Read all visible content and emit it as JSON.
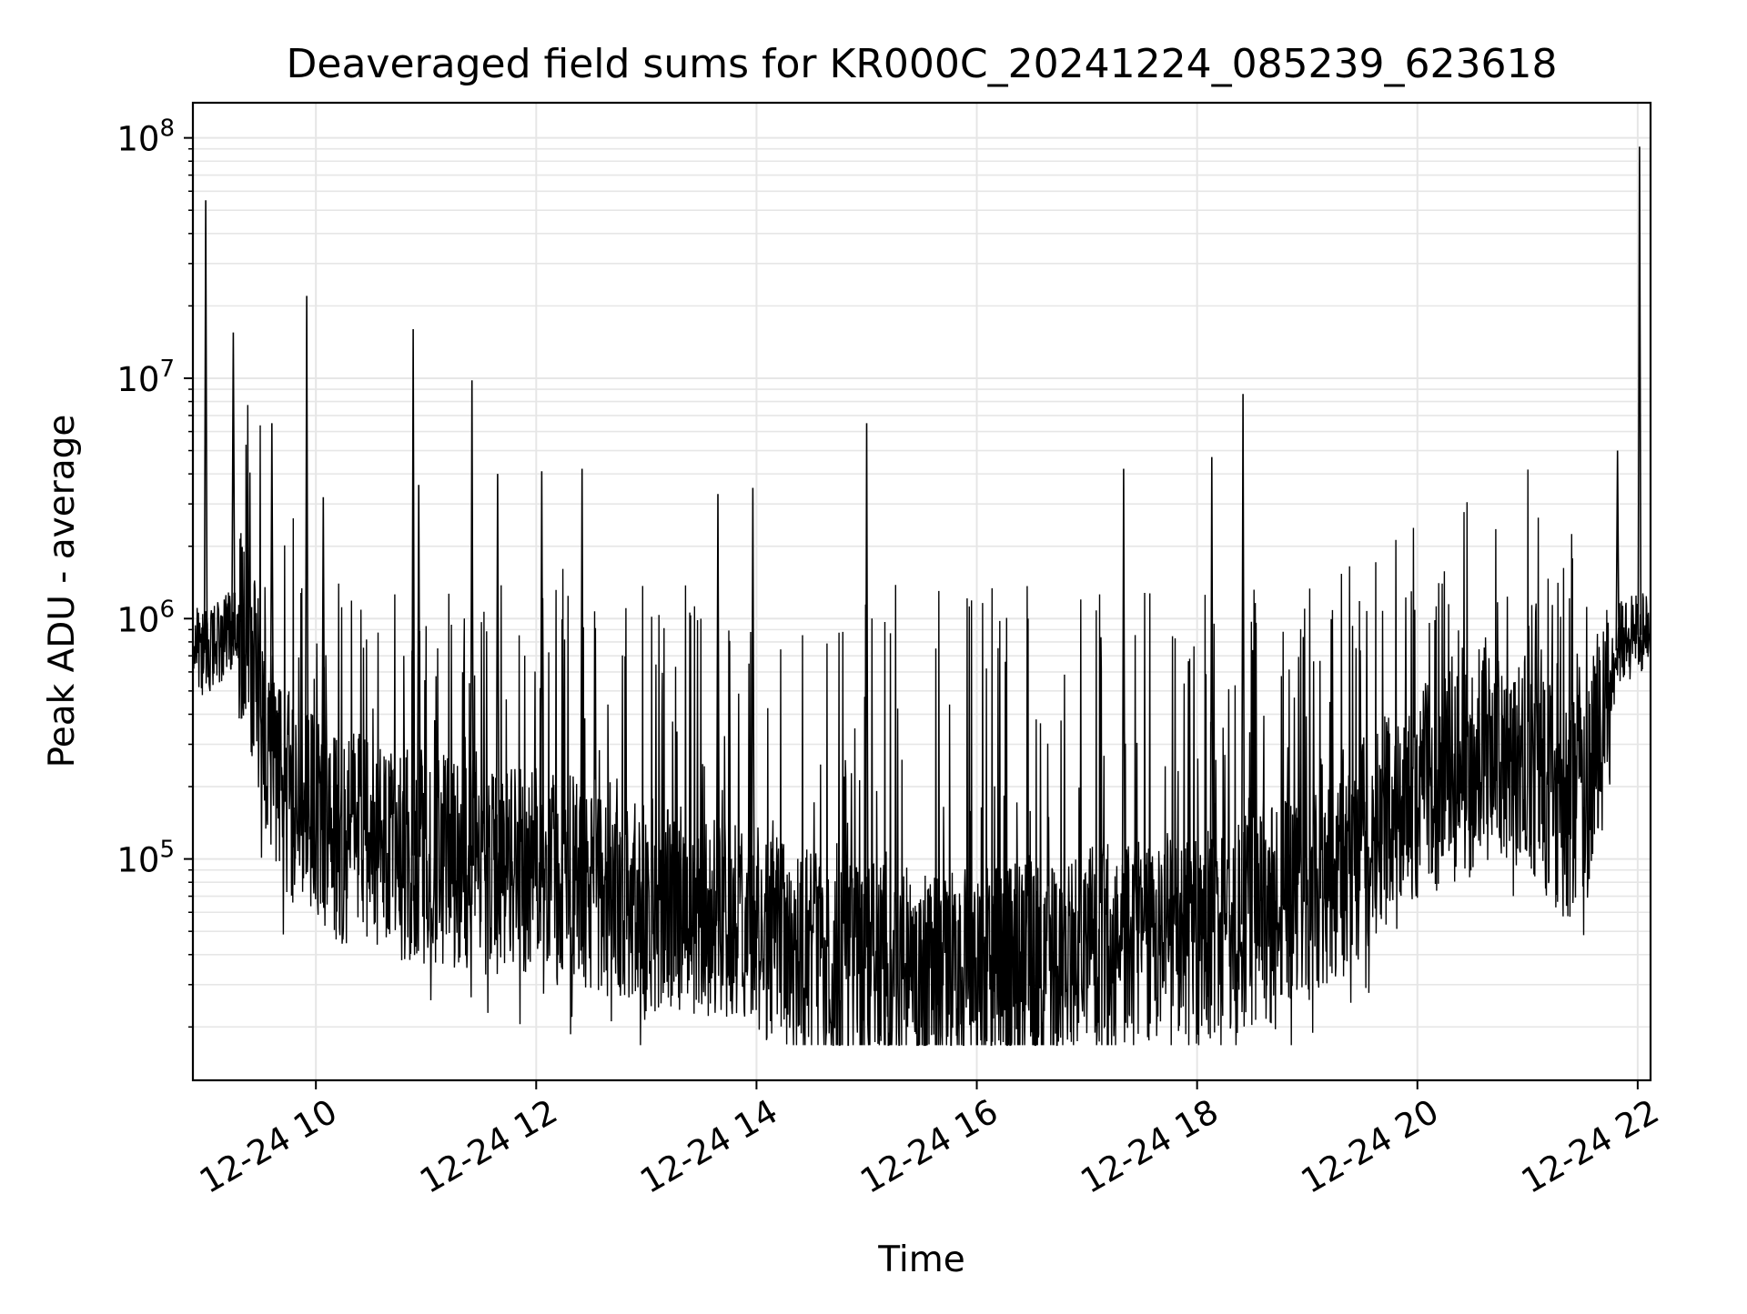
{
  "chart_data": {
    "type": "line",
    "title": "Deaveraged field sums for KR000C_20241224_085239_623618",
    "xlabel": "Time",
    "ylabel": "Peak ADU - average",
    "yscale": "log",
    "xlim": [
      "2024-12-24 08:53",
      "2024-12-24 22:07"
    ],
    "ylim": [
      12000,
      140000000
    ],
    "grid": "on",
    "legend": "none",
    "line_color": "#000000",
    "grid_color": "#e6e6e6",
    "xticks": [
      {
        "x": "2024-12-24 10:00",
        "label": "12-24 10"
      },
      {
        "x": "2024-12-24 12:00",
        "label": "12-24 12"
      },
      {
        "x": "2024-12-24 14:00",
        "label": "12-24 14"
      },
      {
        "x": "2024-12-24 16:00",
        "label": "12-24 16"
      },
      {
        "x": "2024-12-24 18:00",
        "label": "12-24 18"
      },
      {
        "x": "2024-12-24 20:00",
        "label": "12-24 20"
      },
      {
        "x": "2024-12-24 22:00",
        "label": "12-24 22"
      }
    ],
    "yticks": [
      {
        "y": 100000,
        "base": "10",
        "exp": "5"
      },
      {
        "y": 1000000,
        "base": "10",
        "exp": "6"
      },
      {
        "y": 10000000,
        "base": "10",
        "exp": "7"
      },
      {
        "y": 100000000,
        "base": "10",
        "exp": "8"
      }
    ],
    "series": [
      {
        "x": [
          "2024-12-24 08:53",
          "2024-12-24 08:58",
          "2024-12-24 09:03",
          "2024-12-24 09:08",
          "2024-12-24 09:13",
          "2024-12-24 09:18",
          "2024-12-24 09:23",
          "2024-12-24 09:28",
          "2024-12-24 09:33",
          "2024-12-24 09:38",
          "2024-12-24 09:45",
          "2024-12-24 09:55",
          "2024-12-24 10:05",
          "2024-12-24 10:20",
          "2024-12-24 10:40",
          "2024-12-24 11:00",
          "2024-12-24 11:20",
          "2024-12-24 11:40",
          "2024-12-24 12:00",
          "2024-12-24 12:20",
          "2024-12-24 12:40",
          "2024-12-24 13:00",
          "2024-12-24 13:20",
          "2024-12-24 13:40",
          "2024-12-24 14:00",
          "2024-12-24 14:20",
          "2024-12-24 14:40",
          "2024-12-24 15:00",
          "2024-12-24 15:20",
          "2024-12-24 15:40",
          "2024-12-24 16:00",
          "2024-12-24 16:20",
          "2024-12-24 16:40",
          "2024-12-24 17:00",
          "2024-12-24 17:20",
          "2024-12-24 17:40",
          "2024-12-24 18:00",
          "2024-12-24 18:20",
          "2024-12-24 18:40",
          "2024-12-24 19:00",
          "2024-12-24 19:20",
          "2024-12-24 19:40",
          "2024-12-24 20:00",
          "2024-12-24 20:20",
          "2024-12-24 20:40",
          "2024-12-24 21:00",
          "2024-12-24 21:10",
          "2024-12-24 21:20",
          "2024-12-24 21:30",
          "2024-12-24 21:40",
          "2024-12-24 21:50",
          "2024-12-24 22:00",
          "2024-12-24 22:07"
        ],
        "y": [
          800000,
          700000,
          750000,
          800000,
          900000,
          1000000,
          700000,
          500000,
          350000,
          250000,
          180000,
          150000,
          130000,
          120000,
          110000,
          100000,
          95000,
          90000,
          85000,
          80000,
          75000,
          65000,
          60000,
          55000,
          50000,
          42000,
          38000,
          35000,
          33000,
          32000,
          33000,
          35000,
          37000,
          40000,
          42000,
          45000,
          48000,
          52000,
          58000,
          70000,
          90000,
          140000,
          180000,
          220000,
          260000,
          250000,
          200000,
          150000,
          180000,
          350000,
          800000,
          850000,
          900000
        ]
      }
    ],
    "spikes": [
      {
        "x": "2024-12-24 09:00",
        "y": 55000000
      },
      {
        "x": "2024-12-24 09:15",
        "y": 15500000
      },
      {
        "x": "2024-12-24 09:36",
        "y": 6500000
      },
      {
        "x": "2024-12-24 09:55",
        "y": 22000000
      },
      {
        "x": "2024-12-24 10:04",
        "y": 3200000
      },
      {
        "x": "2024-12-24 10:53",
        "y": 16000000
      },
      {
        "x": "2024-12-24 10:56",
        "y": 3600000
      },
      {
        "x": "2024-12-24 11:25",
        "y": 9800000
      },
      {
        "x": "2024-12-24 11:39",
        "y": 4000000
      },
      {
        "x": "2024-12-24 12:03",
        "y": 4100000
      },
      {
        "x": "2024-12-24 12:25",
        "y": 4200000
      },
      {
        "x": "2024-12-24 13:39",
        "y": 3300000
      },
      {
        "x": "2024-12-24 13:58",
        "y": 3500000
      },
      {
        "x": "2024-12-24 15:00",
        "y": 6500000
      },
      {
        "x": "2024-12-24 17:20",
        "y": 4200000
      },
      {
        "x": "2024-12-24 18:08",
        "y": 4700000
      },
      {
        "x": "2024-12-24 18:25",
        "y": 8600000
      },
      {
        "x": "2024-12-24 21:49",
        "y": 5000000
      },
      {
        "x": "2024-12-24 22:01",
        "y": 92000000
      }
    ]
  }
}
